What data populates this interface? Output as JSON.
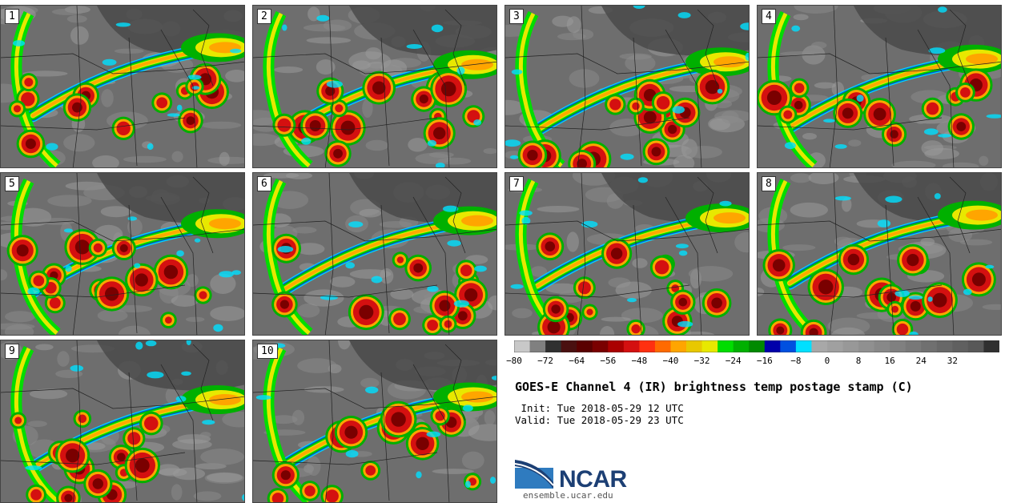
{
  "product": {
    "title": "GOES-E Channel 4 (IR) brightness temp postage stamp (C)",
    "init_text": " Init: Tue 2018-05-29 12 UTC",
    "valid_text": "Valid: Tue 2018-05-29 23 UTC"
  },
  "members": [
    "1",
    "2",
    "3",
    "4",
    "5",
    "6",
    "7",
    "8",
    "9",
    "10"
  ],
  "colorbar": {
    "min": -80,
    "max": 40,
    "step": 4,
    "tick_labels": [
      "−80",
      "−72",
      "−64",
      "−56",
      "−48",
      "−40",
      "−32",
      "−24",
      "−16",
      "−8",
      "0",
      "8",
      "16",
      "24",
      "32"
    ],
    "tick_values": [
      -80,
      -72,
      -64,
      -56,
      -48,
      -40,
      -32,
      -24,
      -16,
      -8,
      0,
      8,
      16,
      24,
      32
    ],
    "colors": [
      "#c8c8c8",
      "#808080",
      "#303030",
      "#4a1010",
      "#5a0000",
      "#7a0000",
      "#aa0000",
      "#d41010",
      "#ff3010",
      "#ff6a00",
      "#ffa500",
      "#e8c800",
      "#e8e800",
      "#00dd00",
      "#00b000",
      "#008a00",
      "#0000aa",
      "#0050e0",
      "#00e0ff",
      "#a8a8a8",
      "#a0a0a0",
      "#989898",
      "#909090",
      "#888888",
      "#808080",
      "#787878",
      "#707070",
      "#686868",
      "#606060",
      "#585858"
    ],
    "end_color": "#303030"
  },
  "logo": {
    "text": "NCAR",
    "site": "ensemble.ucar.edu",
    "blue": "#1c3f74",
    "light_blue": "#2f7bbf"
  }
}
